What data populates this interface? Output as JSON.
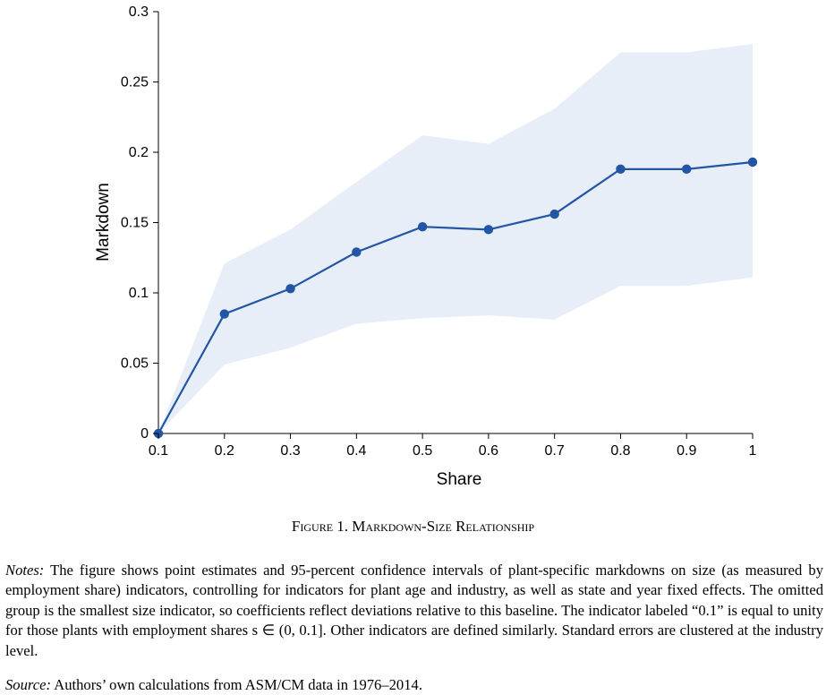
{
  "chart_data": {
    "type": "line",
    "xlabel": "Share",
    "ylabel": "Markdown",
    "xlim": [
      0.1,
      1
    ],
    "ylim": [
      0,
      0.3
    ],
    "x_ticks": [
      "0.1",
      "0.2",
      "0.3",
      "0.4",
      "0.5",
      "0.6",
      "0.7",
      "0.8",
      "0.9",
      "1"
    ],
    "y_ticks": [
      "0",
      "0.05",
      "0.1",
      "0.15",
      "0.2",
      "0.25",
      "0.3"
    ],
    "x": [
      0.1,
      0.2,
      0.3,
      0.4,
      0.5,
      0.6,
      0.7,
      0.8,
      0.9,
      1.0
    ],
    "series": [
      {
        "values": [
          0,
          0.085,
          0.103,
          0.129,
          0.147,
          0.145,
          0.156,
          0.188,
          0.188,
          0.193
        ],
        "ci_lower": [
          0,
          0.049,
          0.061,
          0.078,
          0.082,
          0.084,
          0.081,
          0.105,
          0.105,
          0.111
        ],
        "ci_upper": [
          0,
          0.121,
          0.145,
          0.179,
          0.212,
          0.206,
          0.231,
          0.271,
          0.271,
          0.277
        ]
      }
    ],
    "grid": false,
    "colors": {
      "line": "#2355a5",
      "band": "#e8eef8"
    }
  },
  "caption": {
    "figure_number": "Figure 1.",
    "title": "Markdown-Size Relationship"
  },
  "notes": {
    "label": "Notes:",
    "text": " The figure shows point estimates and 95-percent confidence intervals of plant-specific markdowns on size (as measured by employment share) indicators, controlling for indicators for plant age and industry, as well as state and year fixed effects. The omitted group is the smallest size indicator, so coefficients reflect deviations relative to this baseline. The indicator labeled “0.1” is equal to unity for those plants with employment shares s ∈ (0, 0.1]. Other indicators are defined similarly. Standard errors are clustered at the industry level."
  },
  "source": {
    "label": "Source:",
    "text": " Authors’ own calculations from ASM/CM data in 1976–2014."
  }
}
